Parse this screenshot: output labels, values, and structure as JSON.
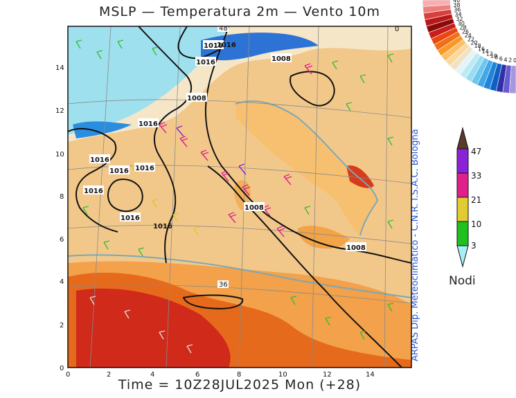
{
  "title": "MSLP — Temperatura 2m — Vento 10m",
  "footer": "Time = 10Z28JUL2025 Mon (+28)",
  "credit": "ARPAS Dip. Meteoclimatico - C.N.R. I.S.A.C. Bologna",
  "axes": {
    "x_ticks": [
      "0",
      "2",
      "4",
      "6",
      "8",
      "10",
      "12",
      "14"
    ],
    "y_ticks": [
      "0",
      "2",
      "4",
      "6",
      "8",
      "10",
      "12",
      "14"
    ]
  },
  "isobars": {
    "labels": [
      "1016",
      "1016",
      "1016",
      "1008",
      "1008",
      "1016",
      "1016",
      "1016",
      "1016",
      "1016",
      "1016",
      "1008",
      "1008"
    ]
  },
  "temperature_annotations": [
    "48",
    "36",
    "0"
  ],
  "wind_legend": {
    "units": "Nodi",
    "levels": [
      "47",
      "33",
      "21",
      "10",
      "3"
    ],
    "colors": [
      "#5a3a2a",
      "#8a22d8",
      "#e0208a",
      "#e0cc30",
      "#20c020",
      "#a8eef8"
    ]
  },
  "temperature_scale": {
    "labels": [
      "40",
      "38",
      "36",
      "34",
      "32",
      "30",
      "28",
      "26",
      "24",
      "22",
      "20",
      "18",
      "16",
      "14",
      "12",
      "10",
      "8",
      "6",
      "4",
      "2",
      "0"
    ],
    "colors": [
      "#f4b0b0",
      "#ec8080",
      "#d84040",
      "#b81818",
      "#8a0a0a",
      "#c81e1e",
      "#e84810",
      "#f07018",
      "#f89828",
      "#fbc068",
      "#fad8a0",
      "#f0e2c4",
      "#e4f4f8",
      "#bdebf5",
      "#9adcf2",
      "#6cc6ee",
      "#40a8e6",
      "#2084da",
      "#1060c4",
      "#3030a8",
      "#6a5ad0",
      "#a498e0"
    ]
  }
}
